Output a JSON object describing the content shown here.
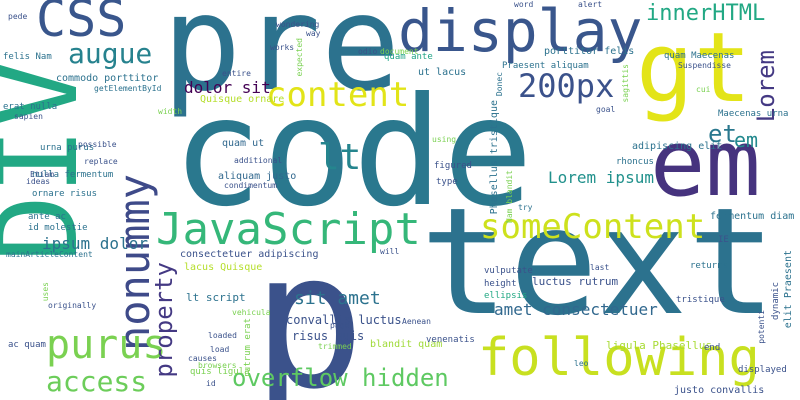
{
  "words": [
    {
      "text": "code",
      "color": "#2a788e"
    },
    {
      "text": "p",
      "color": "#3b528b"
    },
    {
      "text": "text",
      "color": "#2c728e"
    },
    {
      "text": "pre",
      "color": "#2c728e"
    },
    {
      "text": "DIV",
      "color": "#22a884"
    },
    {
      "text": "gt",
      "color": "#e3e418"
    },
    {
      "text": "em",
      "color": "#46337e"
    },
    {
      "text": "display",
      "color": "#39568c"
    },
    {
      "text": "following",
      "color": "#c8e020"
    },
    {
      "text": "CSS",
      "color": "#39568c"
    },
    {
      "text": "nonummy",
      "color": "#3e4a89"
    },
    {
      "text": "JavaScript",
      "color": "#35b779"
    },
    {
      "text": "someContent",
      "color": "#cde11d"
    },
    {
      "text": "purus",
      "color": "#7ad151"
    },
    {
      "text": "access",
      "color": "#6ccd5a"
    },
    {
      "text": "content",
      "color": "#e2e418"
    },
    {
      "text": "200px",
      "color": "#3b528b"
    },
    {
      "text": "innerHTML",
      "color": "#22a884"
    },
    {
      "text": "lt",
      "color": "#25858e"
    },
    {
      "text": "augue",
      "color": "#26828e"
    },
    {
      "text": "Lorem",
      "color": "#443983"
    },
    {
      "text": "overflow hidden",
      "color": "#5ec962"
    },
    {
      "text": "property",
      "color": "#443983"
    },
    {
      "text": "et",
      "color": "#2a788e"
    },
    {
      "text": "em",
      "color": "#23898e"
    },
    {
      "text": "Lorem ipsum",
      "color": "#21918c"
    },
    {
      "text": "sit amet",
      "color": "#2c728e"
    },
    {
      "text": "ipsum dolor",
      "color": "#2c728e"
    },
    {
      "text": "amet consectetuer",
      "color": "#31688e"
    },
    {
      "text": "dolor sit",
      "color": "#440154"
    },
    {
      "text": "fermentum diam",
      "color": "#2c728e"
    },
    {
      "text": "convallis luctus",
      "color": "#3b528b"
    },
    {
      "text": "risus quis",
      "color": "#3b528b"
    },
    {
      "text": "blandit quam",
      "color": "#a0da39"
    },
    {
      "text": "luctus rutrum",
      "color": "#3b528b"
    },
    {
      "text": "ligula Phasellus",
      "color": "#a8db34"
    },
    {
      "text": "adipiscing elit",
      "color": "#2c728e"
    },
    {
      "text": "justo convallis",
      "color": "#3b528b"
    },
    {
      "text": "commodo porttitor",
      "color": "#2c728e"
    },
    {
      "text": "porttitor felis",
      "color": "#2c728e"
    },
    {
      "text": "ut lacus",
      "color": "#2c728e"
    },
    {
      "text": "quam ante",
      "color": "#20a386"
    },
    {
      "text": "Quisque ornare",
      "color": "#b5de2b"
    },
    {
      "text": "aliquam justo",
      "color": "#31688e"
    },
    {
      "text": "quam ut",
      "color": "#31688e"
    },
    {
      "text": "consectetuer adipiscing",
      "color": "#3b528b"
    },
    {
      "text": "lacus Quisque",
      "color": "#b5de2b"
    },
    {
      "text": "lt script",
      "color": "#2c728e"
    },
    {
      "text": "ac quam",
      "color": "#3b528b"
    },
    {
      "text": "ornare risus",
      "color": "#2c728e"
    },
    {
      "text": "nulla fermentum",
      "color": "#2c728e"
    },
    {
      "text": "urna purus",
      "color": "#2c728e"
    },
    {
      "text": "id molestie",
      "color": "#2c728e"
    },
    {
      "text": "erat nulla",
      "color": "#2c728e"
    },
    {
      "text": "felis Nam",
      "color": "#2c728e"
    },
    {
      "text": "getElementById",
      "color": "#2c728e"
    },
    {
      "text": "quam Maecenas",
      "color": "#2c728e"
    },
    {
      "text": "Maecenas urna",
      "color": "#2c728e"
    },
    {
      "text": "Phasellus tristique",
      "color": "#2c728e"
    },
    {
      "text": "Praesent aliquam",
      "color": "#2c728e"
    },
    {
      "text": "rhoncus",
      "color": "#2c728e"
    },
    {
      "text": "figured",
      "color": "#3b528b"
    },
    {
      "text": "type",
      "color": "#3b528b"
    },
    {
      "text": "try",
      "color": "#2c728e"
    },
    {
      "text": "height",
      "color": "#3b528b"
    },
    {
      "text": "ellipsis",
      "color": "#22a884"
    },
    {
      "text": "vulputate",
      "color": "#3b528b"
    },
    {
      "text": "returns",
      "color": "#2c728e"
    },
    {
      "text": "tristique",
      "color": "#3b528b"
    },
    {
      "text": "last",
      "color": "#3b528b"
    },
    {
      "text": "venenatis",
      "color": "#3b528b"
    },
    {
      "text": "leo",
      "color": "#2c728e"
    },
    {
      "text": "displayed",
      "color": "#3b528b"
    },
    {
      "text": "end",
      "color": "#3b528b"
    },
    {
      "text": "potenti",
      "color": "#3b528b"
    },
    {
      "text": "dynamic",
      "color": "#3b528b"
    },
    {
      "text": "elit Praesent",
      "color": "#2c728e"
    },
    {
      "text": "IE",
      "color": "#3b528b"
    },
    {
      "text": "vehicula",
      "color": "#7ad151"
    },
    {
      "text": "loaded",
      "color": "#3b528b"
    },
    {
      "text": "browsers",
      "color": "#7ad151"
    },
    {
      "text": "load",
      "color": "#3b528b"
    },
    {
      "text": "causes",
      "color": "#3b528b"
    },
    {
      "text": "id",
      "color": "#3b528b"
    },
    {
      "text": "quis ligula",
      "color": "#7ad151"
    },
    {
      "text": "rutrum erat",
      "color": "#7ad151"
    },
    {
      "text": "page",
      "color": "#3b528b"
    },
    {
      "text": "trimmed",
      "color": "#7ad151"
    },
    {
      "text": "Aenean",
      "color": "#3b528b"
    },
    {
      "text": "will",
      "color": "#3b528b"
    },
    {
      "text": "Nam blandit",
      "color": "#7ad151"
    },
    {
      "text": "using",
      "color": "#7ad151"
    },
    {
      "text": "Etiam",
      "color": "#3b528b"
    },
    {
      "text": "ideas",
      "color": "#3b528b"
    },
    {
      "text": "possible",
      "color": "#3b528b"
    },
    {
      "text": "replace",
      "color": "#3b528b"
    },
    {
      "text": "ante ac",
      "color": "#2c728e"
    },
    {
      "text": "mainArticleContent",
      "color": "#2c728e"
    },
    {
      "text": "uses",
      "color": "#7ad151"
    },
    {
      "text": "originally",
      "color": "#3b528b"
    },
    {
      "text": "sapien",
      "color": "#3b528b"
    },
    {
      "text": "width",
      "color": "#7ad151"
    },
    {
      "text": "entire",
      "color": "#3b528b"
    },
    {
      "text": "additional",
      "color": "#3b528b"
    },
    {
      "text": "condimentum",
      "color": "#3b528b"
    },
    {
      "text": "works",
      "color": "#3b528b"
    },
    {
      "text": "expected",
      "color": "#7ad151"
    },
    {
      "text": "way",
      "color": "#3b528b"
    },
    {
      "text": "wondering",
      "color": "#3b528b"
    },
    {
      "text": "odio",
      "color": "#3b528b"
    },
    {
      "text": "document",
      "color": "#7ad151"
    },
    {
      "text": "word",
      "color": "#3b528b"
    },
    {
      "text": "alert",
      "color": "#3b528b"
    },
    {
      "text": "pede",
      "color": "#3b528b"
    },
    {
      "text": "Suspendisse",
      "color": "#3b528b"
    },
    {
      "text": "sagittis",
      "color": "#7ad151"
    },
    {
      "text": "cui",
      "color": "#7ad151"
    },
    {
      "text": "goal",
      "color": "#3b528b"
    },
    {
      "text": "Donec",
      "color": "#2c728e"
    }
  ]
}
